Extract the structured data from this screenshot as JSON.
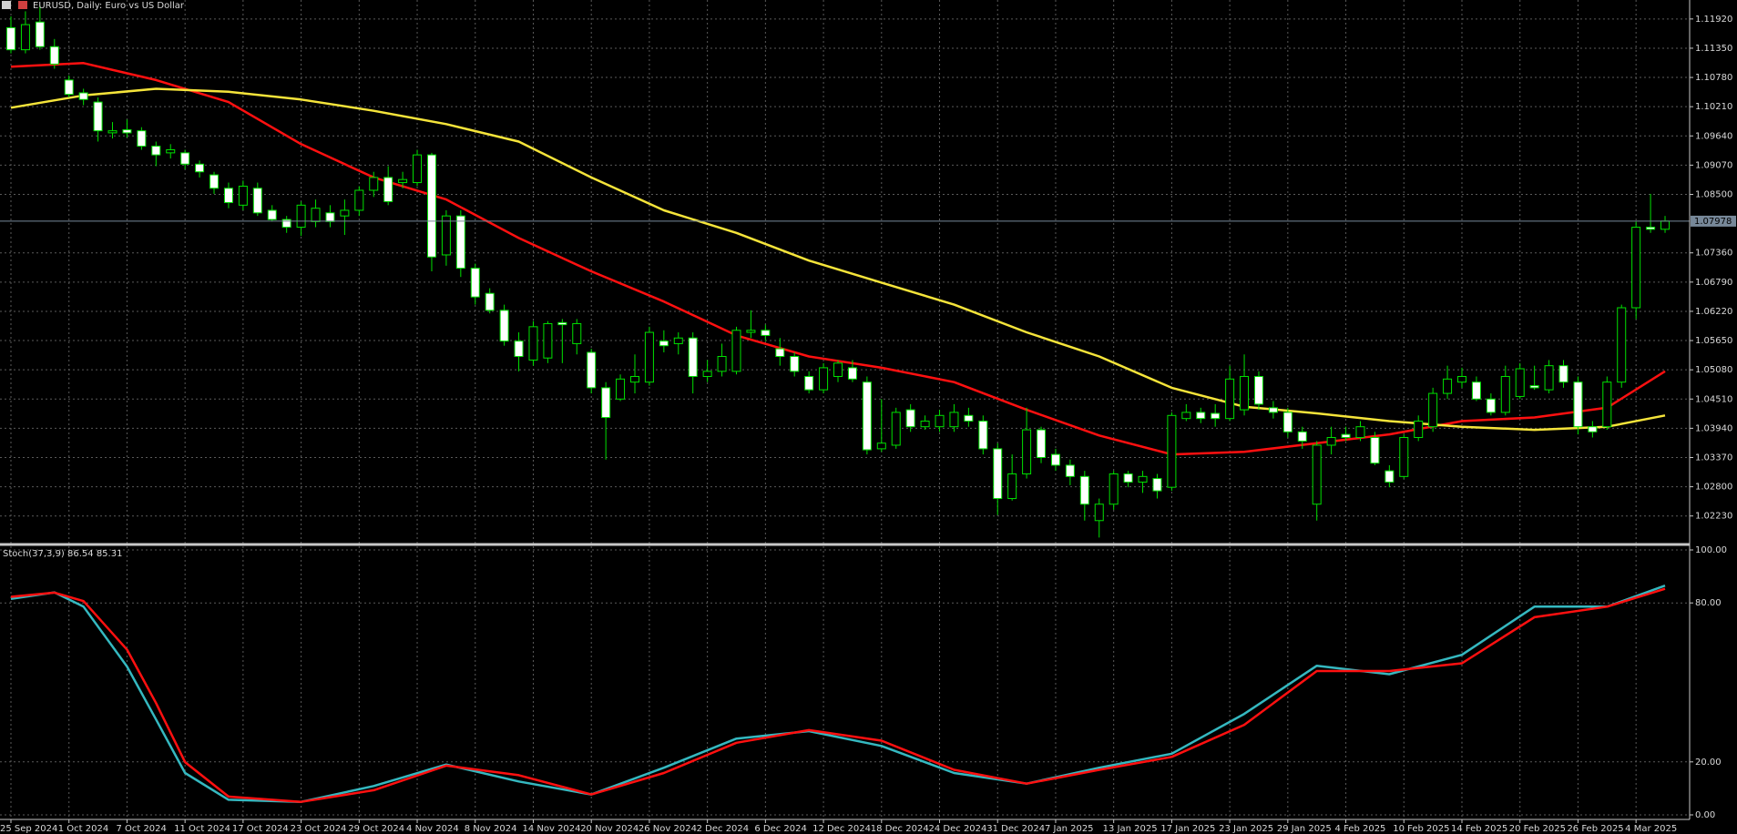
{
  "chart_data": [
    {
      "type": "candlestick",
      "title": "EURUSD, Daily: Euro vs US Dollar",
      "categories": [
        "25 Sep 2024",
        null,
        null,
        null,
        "1 Oct 2024",
        null,
        null,
        null,
        "7 Oct 2024",
        null,
        null,
        null,
        "11 Oct 2024",
        null,
        null,
        null,
        "17 Oct 2024",
        null,
        null,
        null,
        "23 Oct 2024",
        null,
        null,
        null,
        "29 Oct 2024",
        null,
        null,
        null,
        "4 Nov 2024",
        null,
        null,
        null,
        "8 Nov 2024",
        null,
        null,
        null,
        "14 Nov 2024",
        null,
        null,
        null,
        "20 Nov 2024",
        null,
        null,
        null,
        "26 Nov 2024",
        null,
        null,
        null,
        "2 Dec 2024",
        null,
        null,
        null,
        "6 Dec 2024",
        null,
        null,
        null,
        "12 Dec 2024",
        null,
        null,
        null,
        "18 Dec 2024",
        null,
        null,
        null,
        "24 Dec 2024",
        null,
        null,
        null,
        "31 Dec 2024",
        null,
        null,
        null,
        "7 Jan 2025",
        null,
        null,
        null,
        "13 Jan 2025",
        null,
        null,
        null,
        "17 Jan 2025",
        null,
        null,
        null,
        "23 Jan 2025",
        null,
        null,
        null,
        "29 Jan 2025",
        null,
        null,
        null,
        "4 Feb 2025",
        null,
        null,
        null,
        "10 Feb 2025",
        null,
        null,
        null,
        "14 Feb 2025",
        null,
        null,
        null,
        "20 Feb 2025",
        null,
        null,
        null,
        "26 Feb 2025",
        null,
        null,
        null,
        "4 Mar 2025",
        null,
        null
      ],
      "open": [
        1.1175,
        1.1132,
        1.1186,
        1.1138,
        1.1073,
        1.1048,
        1.103,
        1.097,
        1.0976,
        1.0974,
        1.0944,
        1.0931,
        1.0931,
        1.0909,
        1.0888,
        1.0862,
        1.0829,
        1.0862,
        1.0819,
        1.0801,
        1.0786,
        1.0797,
        1.0814,
        1.0808,
        1.0819,
        1.0858,
        1.0883,
        1.0873,
        1.0873,
        1.0927,
        1.0732,
        1.0808,
        1.0706,
        1.0657,
        1.0624,
        1.0564,
        1.0527,
        1.0531,
        1.06,
        1.0559,
        1.0542,
        1.0473,
        1.0451,
        1.0484,
        1.0484,
        1.0564,
        1.0559,
        1.057,
        1.0495,
        1.0505,
        1.0505,
        1.0581,
        1.0585,
        1.0549,
        1.0534,
        1.0495,
        1.0469,
        1.0495,
        1.0512,
        1.0484,
        1.0354,
        1.0361,
        1.043,
        1.0397,
        1.0397,
        1.0397,
        1.0419,
        1.0408,
        1.0354,
        1.0257,
        1.0305,
        1.0391,
        1.0343,
        1.0322,
        1.03,
        1.0214,
        1.0246,
        1.0305,
        1.0289,
        1.0296,
        1.0279,
        1.0413,
        1.0425,
        1.0423,
        1.0413,
        1.043,
        1.0495,
        1.0434,
        1.0425,
        1.0387,
        1.0246,
        1.0361,
        1.0382,
        1.0376,
        1.0376,
        1.0311,
        1.03,
        1.0376,
        1.0397,
        1.0462,
        1.0484,
        1.0484,
        1.0451,
        1.0425,
        1.0456,
        1.0477,
        1.0469,
        1.0516,
        1.0484,
        1.0397,
        1.0397,
        1.0484,
        1.0629,
        1.0786,
        1.0782
      ],
      "high": [
        1.1197,
        1.1207,
        1.1218,
        1.1153,
        1.1082,
        1.1056,
        1.1039,
        1.0991,
        1.0996,
        1.0981,
        1.0953,
        1.0948,
        1.0937,
        1.0916,
        1.0894,
        1.0873,
        1.0877,
        1.0873,
        1.0829,
        1.0808,
        1.0836,
        1.084,
        1.0829,
        1.084,
        1.0866,
        1.0894,
        1.0905,
        1.0894,
        1.0937,
        1.0931,
        1.0819,
        1.0819,
        1.0715,
        1.0667,
        1.0635,
        1.0581,
        1.0603,
        1.0603,
        1.0607,
        1.0607,
        1.0549,
        1.0484,
        1.0499,
        1.0538,
        1.0592,
        1.0585,
        1.0581,
        1.0581,
        1.0527,
        1.0559,
        1.0592,
        1.0624,
        1.0596,
        1.057,
        1.0542,
        1.0505,
        1.0521,
        1.0527,
        1.0527,
        1.0495,
        1.0451,
        1.0434,
        1.0441,
        1.0419,
        1.043,
        1.0441,
        1.0434,
        1.0419,
        1.0365,
        1.0343,
        1.0434,
        1.0397,
        1.0354,
        1.0333,
        1.0311,
        1.0257,
        1.0311,
        1.0311,
        1.0311,
        1.0305,
        1.0425,
        1.0441,
        1.0434,
        1.0441,
        1.0516,
        1.0538,
        1.0505,
        1.0447,
        1.0434,
        1.0397,
        1.0369,
        1.0397,
        1.0397,
        1.0408,
        1.0387,
        1.0322,
        1.0382,
        1.0419,
        1.0473,
        1.0516,
        1.0512,
        1.0495,
        1.0462,
        1.0516,
        1.0521,
        1.0516,
        1.0527,
        1.0527,
        1.0495,
        1.0408,
        1.0495,
        1.0635,
        1.0797,
        1.0851,
        1.0808
      ],
      "low": [
        1.1125,
        1.1125,
        1.1132,
        1.1095,
        1.1039,
        1.1024,
        1.0953,
        1.0959,
        1.0961,
        1.0937,
        1.0905,
        1.092,
        1.0899,
        1.0883,
        1.0851,
        1.0823,
        1.0819,
        1.0808,
        1.0797,
        1.0775,
        1.0769,
        1.0786,
        1.0786,
        1.0771,
        1.0808,
        1.0845,
        1.0829,
        1.0862,
        1.0866,
        1.07,
        1.0711,
        1.0689,
        1.0635,
        1.0618,
        1.0555,
        1.0505,
        1.0516,
        1.0521,
        1.0521,
        1.0538,
        1.0462,
        1.0333,
        1.0447,
        1.0462,
        1.0477,
        1.0542,
        1.0538,
        1.0462,
        1.0484,
        1.0495,
        1.0499,
        1.057,
        1.0564,
        1.0516,
        1.0495,
        1.0462,
        1.0462,
        1.0484,
        1.0484,
        1.0343,
        1.0348,
        1.0354,
        1.0387,
        1.0391,
        1.0387,
        1.0387,
        1.0397,
        1.0343,
        1.0225,
        1.0253,
        1.0296,
        1.0326,
        1.0311,
        1.0283,
        1.0214,
        1.0181,
        1.0235,
        1.0279,
        1.0268,
        1.0257,
        1.0272,
        1.0408,
        1.0404,
        1.0397,
        1.0408,
        1.0419,
        1.043,
        1.0413,
        1.0376,
        1.0354,
        1.0214,
        1.0343,
        1.0369,
        1.0369,
        1.0322,
        1.0279,
        1.0296,
        1.0369,
        1.0387,
        1.0451,
        1.0473,
        1.0447,
        1.0419,
        1.0419,
        1.0451,
        1.0469,
        1.0462,
        1.0473,
        1.0382,
        1.0376,
        1.0391,
        1.0473,
        1.0607,
        1.0775,
        1.0775
      ],
      "close": [
        1.1132,
        1.1181,
        1.1138,
        1.1104,
        1.1045,
        1.1035,
        1.0974,
        1.0974,
        1.097,
        1.0944,
        1.0927,
        1.0937,
        1.0909,
        1.0894,
        1.0862,
        1.0834,
        1.0866,
        1.0814,
        1.0801,
        1.0786,
        1.0829,
        1.0823,
        1.0797,
        1.0819,
        1.0858,
        1.0883,
        1.0836,
        1.0879,
        1.0927,
        1.0728,
        1.0808,
        1.0706,
        1.065,
        1.0624,
        1.0564,
        1.0534,
        1.0592,
        1.0598,
        1.0596,
        1.0598,
        1.0473,
        1.0415,
        1.049,
        1.0495,
        1.0581,
        1.0555,
        1.057,
        1.0495,
        1.0505,
        1.0534,
        1.0585,
        1.0585,
        1.0575,
        1.0534,
        1.0505,
        1.0469,
        1.0512,
        1.0521,
        1.049,
        1.0352,
        1.0365,
        1.0425,
        1.0397,
        1.0408,
        1.0419,
        1.0425,
        1.0408,
        1.0354,
        1.0257,
        1.0305,
        1.0391,
        1.0337,
        1.0322,
        1.03,
        1.0246,
        1.0246,
        1.0305,
        1.0289,
        1.03,
        1.0272,
        1.0419,
        1.0425,
        1.0413,
        1.0413,
        1.049,
        1.0495,
        1.0441,
        1.0425,
        1.0387,
        1.0369,
        1.0361,
        1.0376,
        1.0376,
        1.0397,
        1.0326,
        1.0289,
        1.0376,
        1.0408,
        1.0462,
        1.049,
        1.0495,
        1.0451,
        1.0425,
        1.0495,
        1.051,
        1.0473,
        1.0516,
        1.0484,
        1.0397,
        1.0387,
        1.0484,
        1.0629,
        1.0786,
        1.0782,
        1.0798
      ],
      "bull_color": "#000000",
      "bear_color": "#ffffff",
      "wick_color": "#00e000",
      "lines": [
        {
          "color": "#ff1010",
          "x": [
            0,
            5,
            10,
            15,
            20,
            25,
            30,
            35,
            40,
            45,
            50,
            55,
            60,
            65,
            70,
            75,
            80,
            85,
            90,
            95,
            100,
            105,
            110,
            114
          ],
          "values": [
            1.1099,
            1.1106,
            1.1073,
            1.103,
            1.0948,
            1.0883,
            1.084,
            1.0765,
            1.07,
            1.0641,
            1.0575,
            1.0534,
            1.0512,
            1.0484,
            1.043,
            1.038,
            1.0343,
            1.0348,
            1.0365,
            1.0382,
            1.0408,
            1.0415,
            1.0434,
            1.0505
          ]
        },
        {
          "color": "#f5e43a",
          "x": [
            0,
            5,
            10,
            15,
            20,
            25,
            30,
            35,
            40,
            45,
            50,
            55,
            60,
            65,
            70,
            75,
            80,
            85,
            90,
            95,
            100,
            105,
            110,
            114
          ],
          "values": [
            1.1019,
            1.1043,
            1.1056,
            1.105,
            1.1035,
            1.1013,
            1.0987,
            1.0953,
            1.0883,
            1.0819,
            1.0775,
            1.0721,
            1.0678,
            1.0635,
            1.0581,
            1.0534,
            1.0473,
            1.0436,
            1.0423,
            1.0408,
            1.0397,
            1.0391,
            1.0397,
            1.0419
          ]
        }
      ],
      "last_price": {
        "value": 1.07978,
        "label": "1.07978"
      },
      "ylim": [
        1.0171,
        1.1229
      ],
      "yticks": [
        {
          "value": 1.1192,
          "label": "1.11920"
        },
        {
          "value": 1.1135,
          "label": "1.11350"
        },
        {
          "value": 1.1078,
          "label": "1.10780"
        },
        {
          "value": 1.1021,
          "label": "1.10210"
        },
        {
          "value": 1.0964,
          "label": "1.09640"
        },
        {
          "value": 1.0907,
          "label": "1.09070"
        },
        {
          "value": 1.085,
          "label": "1.08500"
        },
        {
          "value": 1.0736,
          "label": "1.07360"
        },
        {
          "value": 1.0679,
          "label": "1.06790"
        },
        {
          "value": 1.0622,
          "label": "1.06220"
        },
        {
          "value": 1.0565,
          "label": "1.05650"
        },
        {
          "value": 1.0508,
          "label": "1.05080"
        },
        {
          "value": 1.0451,
          "label": "1.04510"
        },
        {
          "value": 1.0394,
          "label": "1.03940"
        },
        {
          "value": 1.0337,
          "label": "1.03370"
        },
        {
          "value": 1.028,
          "label": "1.02800"
        },
        {
          "value": 1.0223,
          "label": "1.02230"
        }
      ],
      "grid": true
    },
    {
      "type": "line",
      "title": "Stoch(37,3,9) 86.54 85.31",
      "series": [
        {
          "color": "#35b8c0",
          "x": [
            0,
            3,
            5,
            8,
            10,
            12,
            15,
            20,
            25,
            30,
            35,
            40,
            45,
            50,
            55,
            60,
            65,
            70,
            75,
            80,
            85,
            90,
            95,
            100,
            105,
            110,
            114
          ],
          "values": [
            81.5,
            84,
            78.6,
            56,
            36,
            15.8,
            5.7,
            4.9,
            10.9,
            19,
            12.6,
            7.7,
            17.8,
            28.8,
            31.6,
            26,
            15.8,
            11.8,
            17.8,
            23.1,
            38.1,
            56.3,
            53.1,
            60.4,
            78.6,
            78.6,
            86.54
          ]
        },
        {
          "color": "#ff1010",
          "x": [
            0,
            3,
            5,
            8,
            10,
            12,
            15,
            20,
            25,
            30,
            35,
            40,
            45,
            50,
            55,
            60,
            65,
            70,
            75,
            80,
            85,
            90,
            95,
            100,
            105,
            110,
            114
          ],
          "values": [
            82.3,
            83.9,
            80.7,
            62.4,
            42.2,
            19.9,
            6.9,
            4.9,
            9.3,
            18.6,
            15,
            7.7,
            15.8,
            27.2,
            32,
            28,
            17,
            11.8,
            17,
            21.9,
            34,
            54.3,
            54.3,
            57.2,
            74.6,
            78.6,
            85.31
          ]
        }
      ],
      "ylim": [
        0,
        100
      ],
      "yticks": [
        {
          "value": 100,
          "label": "100.00"
        },
        {
          "value": 80,
          "label": "80.00"
        },
        {
          "value": 20,
          "label": "20.00"
        },
        {
          "value": 0,
          "label": "0.00"
        }
      ],
      "grid": true
    }
  ]
}
